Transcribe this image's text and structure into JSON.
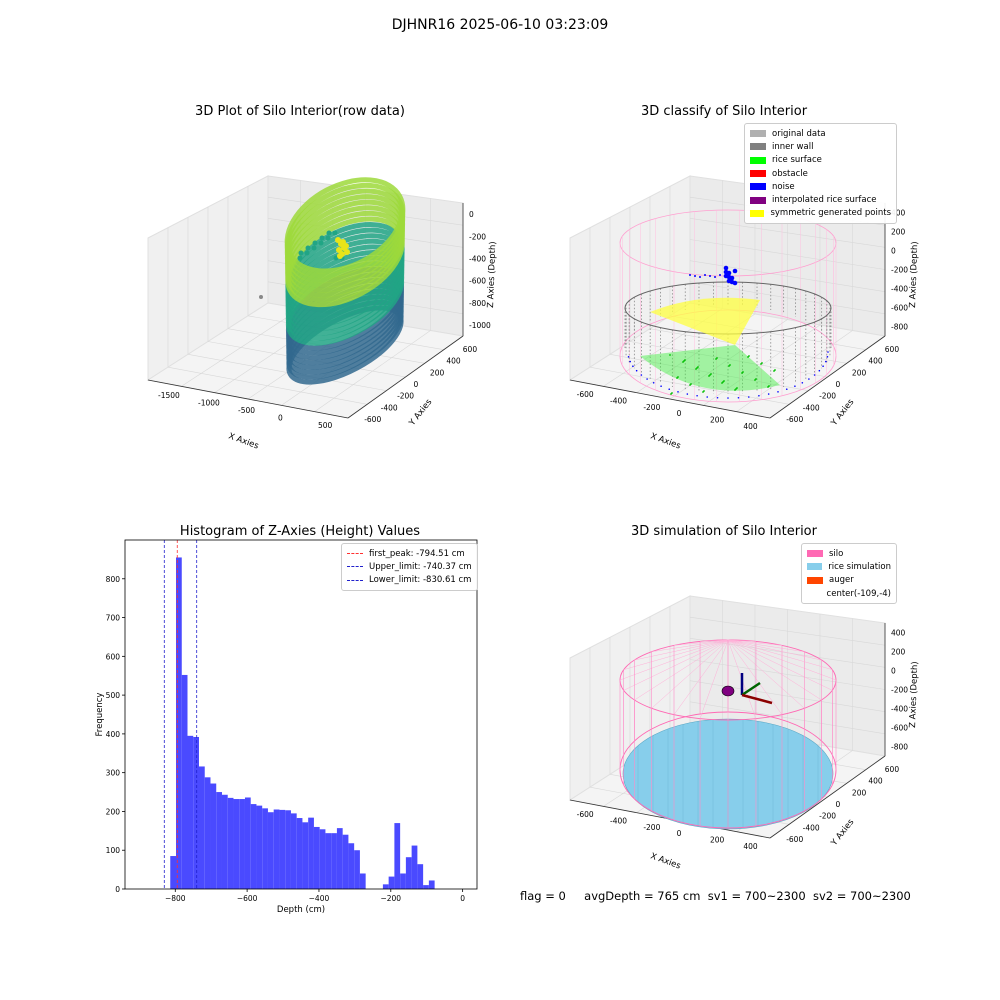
{
  "suptitle": "DJHNR16 2025-06-10 03:23:09",
  "status": {
    "flag": "flag = 0",
    "avg_depth": "avgDepth = 765 cm",
    "sv1": "sv1 = 700~2300",
    "sv2": "sv2 = 700~2300"
  },
  "chart_data": [
    {
      "type": "scatter",
      "title": "3D Plot of Silo Interior(row data)",
      "xlabel": "X Axies",
      "ylabel": "Y Axies",
      "zlabel": "Z Axies (Depth)",
      "xticks": [
        "-1500",
        "-1000",
        "-500",
        "0",
        "500"
      ],
      "yticks": [
        "-600",
        "-400",
        "-200",
        "0",
        "200",
        "400",
        "600"
      ],
      "zticks": [
        "0",
        "-200",
        "-400",
        "-600",
        "-800",
        "-1000"
      ],
      "colormap": "viridis",
      "colors": {
        "low": "#31688e",
        "mid": "#21a585",
        "high": "#9dd93b",
        "top": "#e8e419"
      }
    },
    {
      "type": "scatter",
      "title": "3D classify of Silo Interior",
      "xlabel": "X Axies",
      "ylabel": "Y Axies",
      "zlabel": "Z Axies (Depth)",
      "xticks": [
        "-600",
        "-400",
        "-200",
        "0",
        "200",
        "400"
      ],
      "yticks": [
        "-600",
        "-400",
        "-200",
        "0",
        "200",
        "400",
        "600"
      ],
      "zticks": [
        "400",
        "200",
        "0",
        "-200",
        "-400",
        "-600",
        "-800"
      ],
      "legend_position": "top-right",
      "legend": [
        {
          "label": "original data",
          "color": "#b0b0b0"
        },
        {
          "label": "inner wall",
          "color": "#808080"
        },
        {
          "label": "rice surface",
          "color": "#00ff00"
        },
        {
          "label": "obstacle",
          "color": "#ff0000"
        },
        {
          "label": "noise",
          "color": "#0000ff"
        },
        {
          "label": "interpolated rice surface",
          "color": "#800080"
        },
        {
          "label": "symmetric generated points",
          "color": "#ffff00"
        }
      ]
    },
    {
      "type": "bar",
      "title": "Histogram of Z-Axies (Height) Values",
      "xlabel": "Depth (cm)",
      "ylabel": "Frequency",
      "xlim": [
        -940,
        40
      ],
      "ylim": [
        0,
        900
      ],
      "xticks": [
        -800,
        -600,
        -400,
        -200,
        0
      ],
      "yticks": [
        0,
        100,
        200,
        300,
        400,
        500,
        600,
        700,
        800
      ],
      "bin_width": 16,
      "bin_start": -814,
      "values": [
        85,
        855,
        552,
        395,
        392,
        316,
        288,
        272,
        250,
        243,
        235,
        232,
        232,
        236,
        219,
        215,
        208,
        198,
        205,
        204,
        203,
        195,
        183,
        172,
        184,
        160,
        154,
        144,
        144,
        157,
        140,
        118,
        100,
        40,
        0,
        0,
        0,
        12,
        32,
        170,
        40,
        82,
        112,
        64,
        10,
        22
      ],
      "bar_color": "#4a4aff",
      "legend_position": "top-right",
      "lines": [
        {
          "label": "first_peak: -794.51 cm",
          "x": -794.51,
          "color": "#ff3030"
        },
        {
          "label": "Upper_limit: -740.37 cm",
          "x": -740.37,
          "color": "#2020cc"
        },
        {
          "label": "Lower_limit: -830.61 cm",
          "x": -830.61,
          "color": "#2020cc"
        }
      ]
    },
    {
      "type": "scatter",
      "title": "3D simulation of Silo Interior",
      "xlabel": "X Axies",
      "ylabel": "Y Axies",
      "zlabel": "Z Axies (Depth)",
      "xticks": [
        "-600",
        "-400",
        "-200",
        "0",
        "200",
        "400"
      ],
      "yticks": [
        "-600",
        "-400",
        "-200",
        "0",
        "200",
        "400",
        "600"
      ],
      "zticks": [
        "400",
        "200",
        "0",
        "-200",
        "-400",
        "-600",
        "-800"
      ],
      "legend_position": "top-right",
      "legend": [
        {
          "label": "silo",
          "color": "#ff69b4"
        },
        {
          "label": "rice simulation",
          "color": "#87ceeb"
        },
        {
          "label": "auger",
          "color": "#ff4500"
        },
        {
          "label": "center(-109,-4)",
          "color": "#ffffff"
        }
      ]
    }
  ]
}
